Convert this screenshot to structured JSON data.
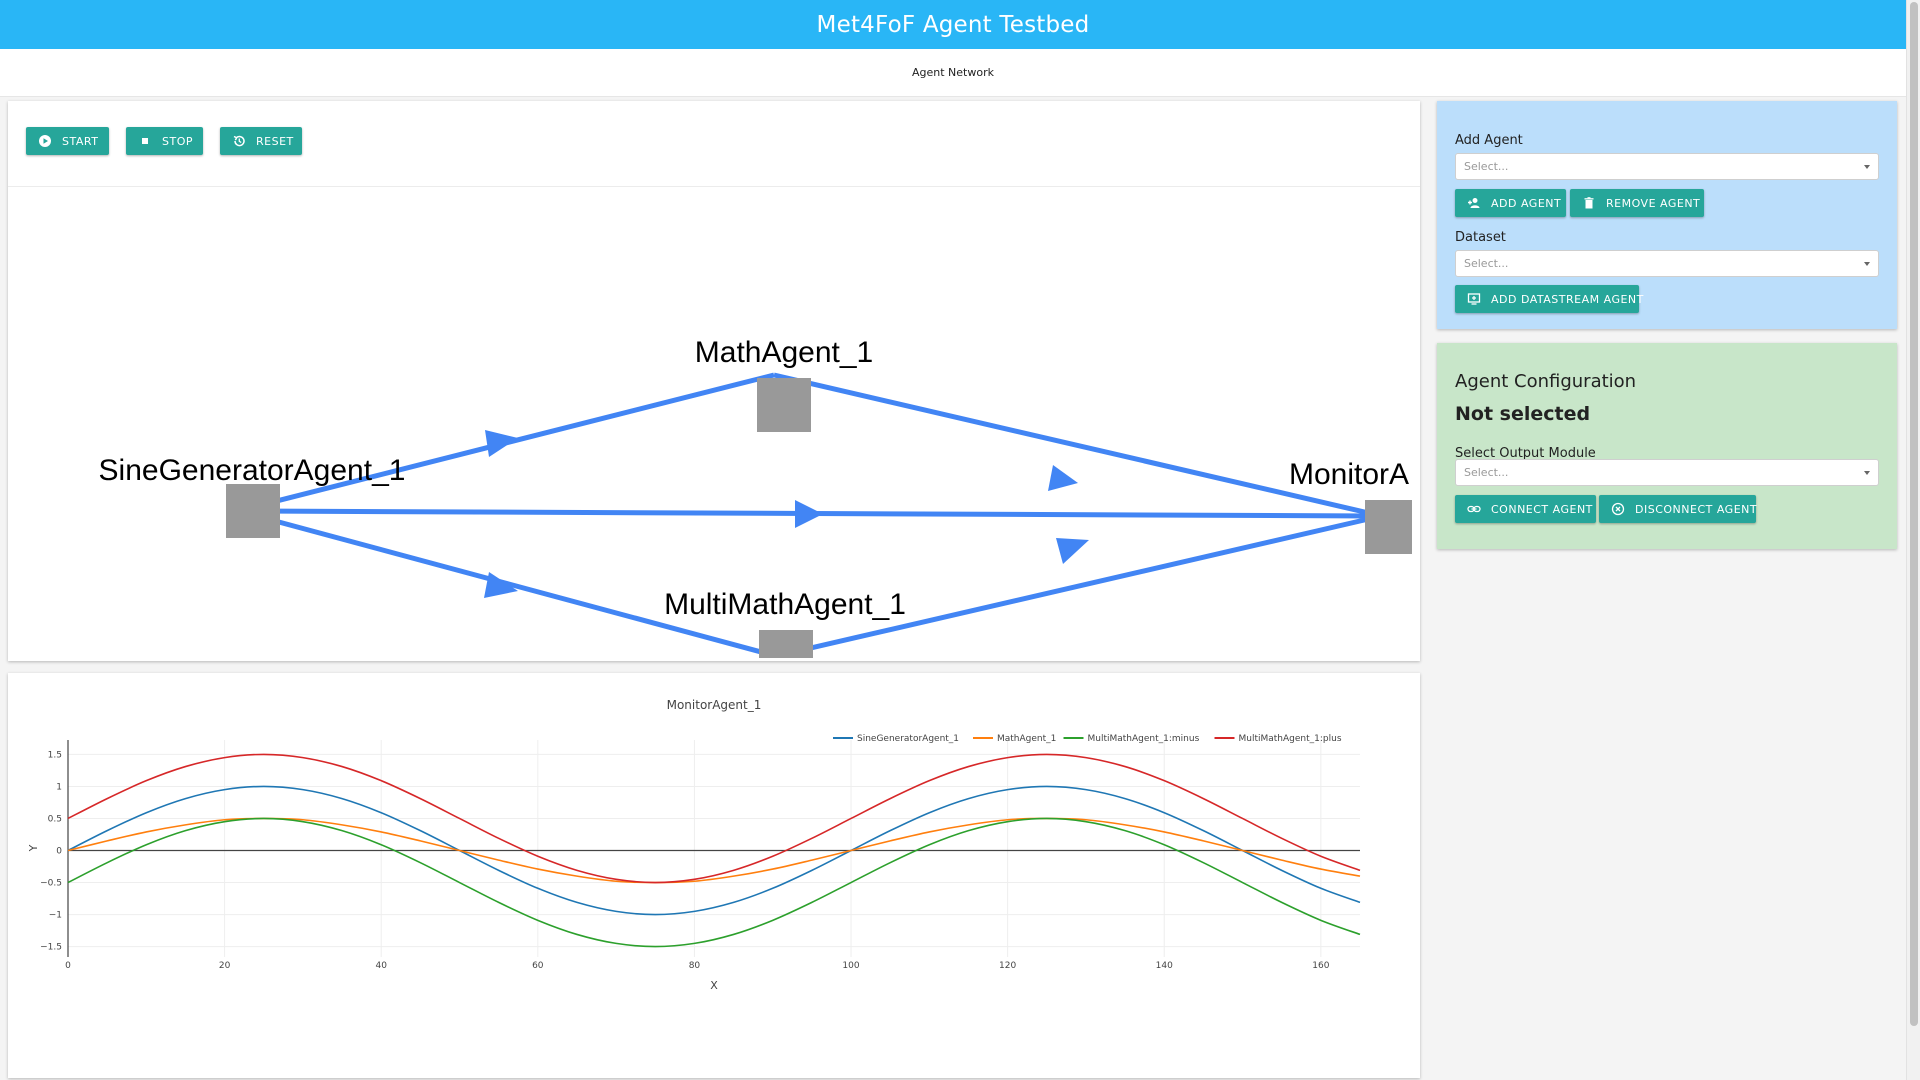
{
  "app": {
    "title": "Met4FoF Agent Testbed"
  },
  "tabs": [
    {
      "label": "Agent Network"
    }
  ],
  "controls": {
    "start_label": "START",
    "stop_label": "STOP",
    "reset_label": "RESET"
  },
  "network": {
    "nodes": [
      "SineGeneratorAgent_1",
      "MathAgent_1",
      "MultiMathAgent_1",
      "MonitorA"
    ],
    "edge_color": "#4285f4",
    "node_color": "#999999"
  },
  "add_agent_panel": {
    "add_agent_label": "Add Agent",
    "agent_select_placeholder": "Select...",
    "add_agent_button": "ADD AGENT",
    "remove_agent_button": "REMOVE AGENT",
    "dataset_label": "Dataset",
    "dataset_select_placeholder": "Select...",
    "add_datastream_button": "ADD DATASTREAM AGENT",
    "background": "#bbdefb"
  },
  "config_panel": {
    "title": "Agent Configuration",
    "status": "Not selected",
    "output_module_label": "Select Output Module",
    "output_select_placeholder": "Select...",
    "connect_button": "CONNECT AGENT",
    "disconnect_button": "DISCONNECT AGENT",
    "background": "#c8e6c9"
  },
  "colors": {
    "topbar": "#29b6f6",
    "button": "#26a69a"
  },
  "chart_data": {
    "type": "line",
    "title": "MonitorAgent_1",
    "xlabel": "X",
    "ylabel": "Y",
    "xlim": [
      0,
      165
    ],
    "ylim": [
      -1.6,
      1.6
    ],
    "xticks": [
      0,
      20,
      40,
      60,
      80,
      100,
      120,
      140,
      160
    ],
    "yticks": [
      1.5,
      1,
      0.5,
      0,
      -0.5,
      -1,
      -1.5
    ],
    "ytick_labels": [
      "1.5",
      "1",
      "0.5",
      "0",
      "−0.5",
      "−1",
      "−1.5"
    ],
    "grid": true,
    "legend_position": "top-right",
    "x": [
      0,
      5,
      10,
      15,
      20,
      25,
      30,
      35,
      40,
      45,
      50,
      55,
      60,
      65,
      70,
      75,
      80,
      85,
      90,
      95,
      100,
      105,
      110,
      115,
      120,
      125,
      130,
      135,
      140,
      145,
      150,
      155,
      160,
      165
    ],
    "series": [
      {
        "name": "SineGeneratorAgent_1",
        "color": "#1f77b4",
        "values": [
          0,
          0.31,
          0.59,
          0.81,
          0.95,
          1.0,
          0.95,
          0.81,
          0.59,
          0.31,
          0,
          -0.31,
          -0.59,
          -0.81,
          -0.95,
          -1.0,
          -0.95,
          -0.81,
          -0.59,
          -0.31,
          0,
          0.31,
          0.59,
          0.81,
          0.95,
          1.0,
          0.95,
          0.81,
          0.59,
          0.31,
          0,
          -0.31,
          -0.59,
          -0.81
        ]
      },
      {
        "name": "MathAgent_1",
        "color": "#ff7f0e",
        "values": [
          0,
          0.15,
          0.29,
          0.4,
          0.48,
          0.5,
          0.48,
          0.4,
          0.29,
          0.15,
          0,
          -0.15,
          -0.29,
          -0.4,
          -0.48,
          -0.5,
          -0.48,
          -0.4,
          -0.29,
          -0.15,
          0,
          0.15,
          0.29,
          0.4,
          0.48,
          0.5,
          0.48,
          0.4,
          0.29,
          0.15,
          0,
          -0.15,
          -0.29,
          -0.4
        ]
      },
      {
        "name": "MultiMathAgent_1:minus",
        "color": "#2ca02c",
        "values": [
          -0.5,
          -0.19,
          0.09,
          0.31,
          0.45,
          0.5,
          0.45,
          0.31,
          0.09,
          -0.19,
          -0.5,
          -0.81,
          -1.09,
          -1.31,
          -1.45,
          -1.5,
          -1.45,
          -1.31,
          -1.09,
          -0.81,
          -0.5,
          -0.19,
          0.09,
          0.31,
          0.45,
          0.5,
          0.45,
          0.31,
          0.09,
          -0.19,
          -0.5,
          -0.81,
          -1.09,
          -1.31
        ]
      },
      {
        "name": "MultiMathAgent_1:plus",
        "color": "#d62728",
        "values": [
          0.5,
          0.81,
          1.09,
          1.31,
          1.45,
          1.5,
          1.45,
          1.31,
          1.09,
          0.81,
          0.5,
          0.19,
          -0.09,
          -0.31,
          -0.45,
          -0.5,
          -0.45,
          -0.31,
          -0.09,
          0.19,
          0.5,
          0.81,
          1.09,
          1.31,
          1.45,
          1.5,
          1.45,
          1.31,
          1.09,
          0.81,
          0.5,
          0.19,
          -0.09,
          -0.31
        ]
      }
    ]
  }
}
